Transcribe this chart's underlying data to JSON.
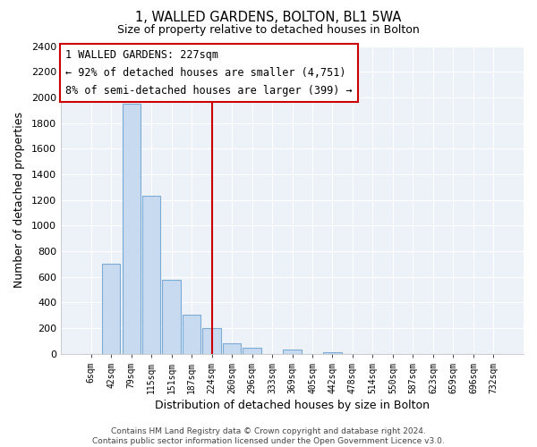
{
  "title": "1, WALLED GARDENS, BOLTON, BL1 5WA",
  "subtitle": "Size of property relative to detached houses in Bolton",
  "xlabel": "Distribution of detached houses by size in Bolton",
  "ylabel": "Number of detached properties",
  "footer_line1": "Contains HM Land Registry data © Crown copyright and database right 2024.",
  "footer_line2": "Contains public sector information licensed under the Open Government Licence v3.0.",
  "bin_labels": [
    "6sqm",
    "42sqm",
    "79sqm",
    "115sqm",
    "151sqm",
    "187sqm",
    "224sqm",
    "260sqm",
    "296sqm",
    "333sqm",
    "369sqm",
    "405sqm",
    "442sqm",
    "478sqm",
    "514sqm",
    "550sqm",
    "587sqm",
    "623sqm",
    "659sqm",
    "696sqm",
    "732sqm"
  ],
  "bin_values": [
    0,
    700,
    1950,
    1230,
    575,
    305,
    200,
    85,
    45,
    0,
    35,
    0,
    15,
    0,
    0,
    0,
    0,
    0,
    0,
    0,
    0
  ],
  "bar_color": "#c8daf0",
  "bar_edgecolor": "#7baad4",
  "vline_x_index": 6,
  "vline_color": "#cc0000",
  "bg_color": "#edf2f9",
  "ylim": [
    0,
    2400
  ],
  "yticks": [
    0,
    200,
    400,
    600,
    800,
    1000,
    1200,
    1400,
    1600,
    1800,
    2000,
    2200,
    2400
  ],
  "annotation_title": "1 WALLED GARDENS: 227sqm",
  "annotation_line1": "← 92% of detached houses are smaller (4,751)",
  "annotation_line2": "8% of semi-detached houses are larger (399) →",
  "annotation_box_facecolor": "#ffffff",
  "annotation_box_edgecolor": "#cc0000"
}
